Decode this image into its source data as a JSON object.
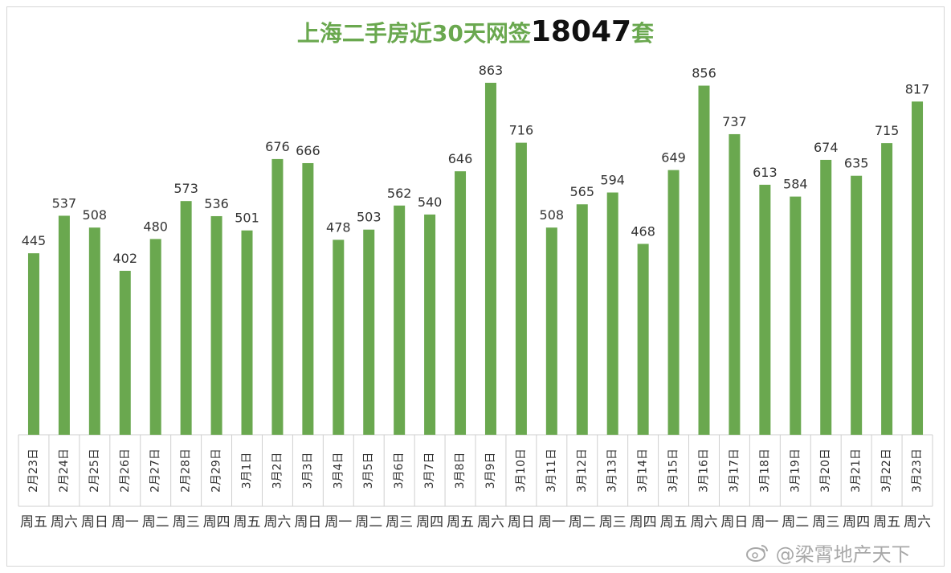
{
  "title": {
    "prefix": "上海二手房近30天网签",
    "number": "18047",
    "suffix": "套"
  },
  "watermark": "@梁霄地产天下",
  "colors": {
    "bar": "#6aa84f",
    "title": "#6aa84f",
    "label": "#333333",
    "grid": "#cfcfcf"
  },
  "chart_data": {
    "type": "bar",
    "title": "上海二手房近30天网签18047套",
    "categories": [
      "2月23日",
      "2月24日",
      "2月25日",
      "2月26日",
      "2月27日",
      "2月28日",
      "2月29日",
      "3月1日",
      "3月2日",
      "3月3日",
      "3月4日",
      "3月5日",
      "3月6日",
      "3月7日",
      "3月8日",
      "3月9日",
      "3月10日",
      "3月11日",
      "3月12日",
      "3月13日",
      "3月14日",
      "3月15日",
      "3月16日",
      "3月17日",
      "3月18日",
      "3月19日",
      "3月20日",
      "3月21日",
      "3月22日",
      "3月23日"
    ],
    "weekdays": [
      "周五",
      "周六",
      "周日",
      "周一",
      "周二",
      "周三",
      "周四",
      "周五",
      "周六",
      "周日",
      "周一",
      "周二",
      "周三",
      "周四",
      "周五",
      "周六",
      "周日",
      "周一",
      "周二",
      "周三",
      "周四",
      "周五",
      "周六",
      "周日",
      "周一",
      "周二",
      "周三",
      "周四",
      "周五",
      "周六"
    ],
    "values": [
      445,
      537,
      508,
      402,
      480,
      573,
      536,
      501,
      676,
      666,
      478,
      503,
      562,
      540,
      646,
      863,
      716,
      508,
      565,
      594,
      468,
      649,
      856,
      737,
      613,
      584,
      674,
      635,
      715,
      817
    ],
    "xlabel": "",
    "ylabel": "",
    "ylim": [
      0,
      900
    ],
    "grid": false,
    "legend": "none"
  }
}
